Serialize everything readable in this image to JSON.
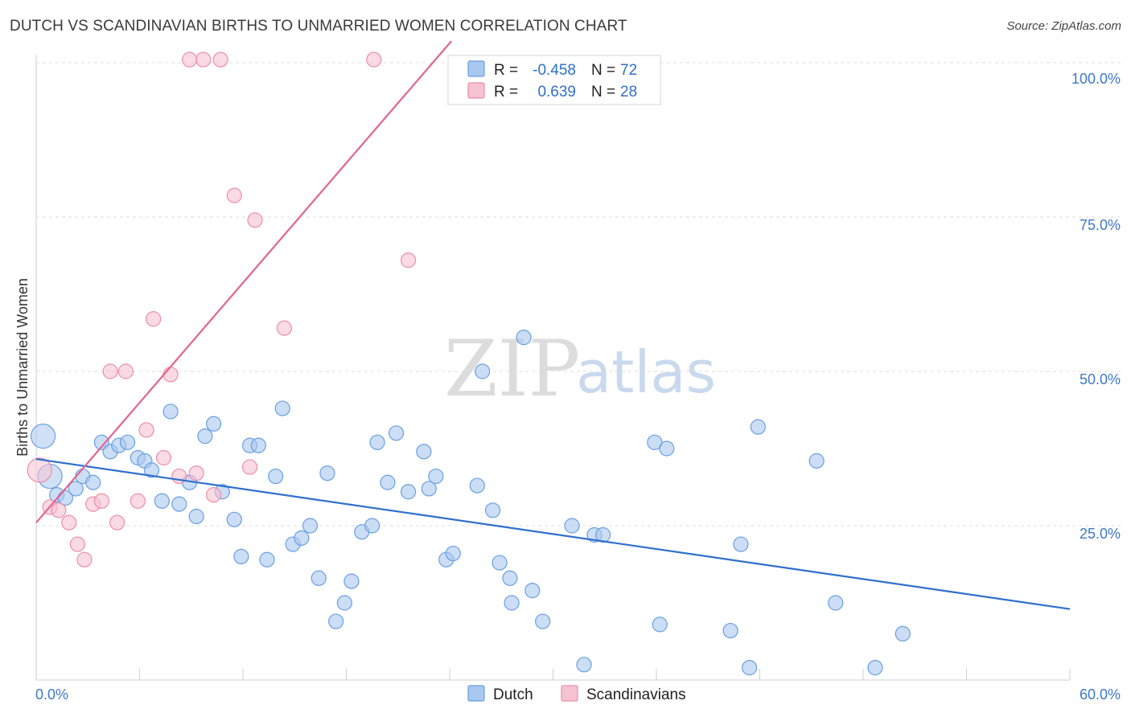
{
  "title": "DUTCH VS SCANDINAVIAN BIRTHS TO UNMARRIED WOMEN CORRELATION CHART",
  "source": "Source: ZipAtlas.com",
  "watermark": {
    "zip": "ZIP",
    "atlas": "atlas"
  },
  "colors": {
    "dutch_fill": "#a9c8f0",
    "dutch_stroke": "#6a9fe0",
    "dutch_line": "#2f6fce",
    "scand_fill": "#f7c2d2",
    "scand_stroke": "#ec8eab",
    "scand_line": "#e2648e",
    "axis_text": "#3f78c8",
    "grid": "#dddddd"
  },
  "legend": {
    "rows": [
      {
        "r_label": "R =",
        "r_value": "-0.458",
        "n_label": "N =",
        "n_value": "72"
      },
      {
        "r_label": "R =",
        "r_value": "0.639",
        "n_label": "N =",
        "n_value": "28"
      }
    ]
  },
  "bottom_legend": {
    "dutch": "Dutch",
    "scandinavians": "Scandinavians"
  },
  "chart_data": {
    "type": "scatter",
    "title": "DUTCH VS SCANDINAVIAN BIRTHS TO UNMARRIED WOMEN CORRELATION CHART",
    "xlabel": "",
    "ylabel": "Births to Unmarried Women",
    "xlim": [
      0,
      60
    ],
    "ylim": [
      0,
      105
    ],
    "x_tick_labels": [
      "0.0%",
      "60.0%"
    ],
    "y_ticks": [
      {
        "value": 25,
        "label": "25.0%"
      },
      {
        "value": 50,
        "label": "50.0%"
      },
      {
        "value": 75,
        "label": "75.0%"
      },
      {
        "value": 100,
        "label": "100.0%"
      }
    ],
    "grid": true,
    "series": [
      {
        "name": "Dutch",
        "r": -0.458,
        "n": 72,
        "trend": {
          "x": [
            0,
            60
          ],
          "y": [
            35.8,
            11.5
          ]
        },
        "points": [
          {
            "x": 0.4,
            "y": 39.5,
            "big": true
          },
          {
            "x": 0.8,
            "y": 33.0,
            "big": true
          },
          {
            "x": 1.2,
            "y": 30.0
          },
          {
            "x": 1.7,
            "y": 29.5
          },
          {
            "x": 2.3,
            "y": 31.0
          },
          {
            "x": 2.7,
            "y": 33.0
          },
          {
            "x": 3.3,
            "y": 32.0
          },
          {
            "x": 3.8,
            "y": 38.5
          },
          {
            "x": 4.3,
            "y": 37.0
          },
          {
            "x": 4.8,
            "y": 38.0
          },
          {
            "x": 5.3,
            "y": 38.5
          },
          {
            "x": 5.9,
            "y": 36.0
          },
          {
            "x": 6.3,
            "y": 35.5
          },
          {
            "x": 6.7,
            "y": 34.0
          },
          {
            "x": 7.3,
            "y": 29.0
          },
          {
            "x": 7.8,
            "y": 43.5
          },
          {
            "x": 8.3,
            "y": 28.5
          },
          {
            "x": 8.9,
            "y": 32.0
          },
          {
            "x": 9.3,
            "y": 26.5
          },
          {
            "x": 9.8,
            "y": 39.5
          },
          {
            "x": 10.3,
            "y": 41.5
          },
          {
            "x": 10.8,
            "y": 30.5
          },
          {
            "x": 11.5,
            "y": 26.0
          },
          {
            "x": 11.9,
            "y": 20.0
          },
          {
            "x": 12.4,
            "y": 38.0
          },
          {
            "x": 12.9,
            "y": 38.0
          },
          {
            "x": 13.4,
            "y": 19.5
          },
          {
            "x": 13.9,
            "y": 33.0
          },
          {
            "x": 14.3,
            "y": 44.0
          },
          {
            "x": 14.9,
            "y": 22.0
          },
          {
            "x": 15.4,
            "y": 23.0
          },
          {
            "x": 15.9,
            "y": 25.0
          },
          {
            "x": 16.4,
            "y": 16.5
          },
          {
            "x": 16.9,
            "y": 33.5
          },
          {
            "x": 17.4,
            "y": 9.5
          },
          {
            "x": 17.9,
            "y": 12.5
          },
          {
            "x": 18.3,
            "y": 16.0
          },
          {
            "x": 18.9,
            "y": 24.0
          },
          {
            "x": 19.5,
            "y": 25.0
          },
          {
            "x": 19.8,
            "y": 38.5
          },
          {
            "x": 20.4,
            "y": 32.0
          },
          {
            "x": 20.9,
            "y": 40.0
          },
          {
            "x": 21.6,
            "y": 30.5
          },
          {
            "x": 22.5,
            "y": 37.0
          },
          {
            "x": 22.8,
            "y": 31.0
          },
          {
            "x": 23.2,
            "y": 33.0
          },
          {
            "x": 23.8,
            "y": 19.5
          },
          {
            "x": 24.2,
            "y": 20.5
          },
          {
            "x": 25.6,
            "y": 31.5
          },
          {
            "x": 25.9,
            "y": 50.0
          },
          {
            "x": 26.5,
            "y": 27.5
          },
          {
            "x": 26.9,
            "y": 19.0
          },
          {
            "x": 27.5,
            "y": 16.5
          },
          {
            "x": 27.6,
            "y": 12.5
          },
          {
            "x": 28.3,
            "y": 55.5
          },
          {
            "x": 28.8,
            "y": 14.5
          },
          {
            "x": 29.4,
            "y": 9.5
          },
          {
            "x": 31.1,
            "y": 25.0
          },
          {
            "x": 31.8,
            "y": 2.5
          },
          {
            "x": 32.4,
            "y": 23.5
          },
          {
            "x": 32.9,
            "y": 23.5
          },
          {
            "x": 35.9,
            "y": 38.5
          },
          {
            "x": 36.2,
            "y": 9.0
          },
          {
            "x": 36.6,
            "y": 37.5
          },
          {
            "x": 40.3,
            "y": 8.0
          },
          {
            "x": 40.9,
            "y": 22.0
          },
          {
            "x": 41.4,
            "y": 2.0
          },
          {
            "x": 41.9,
            "y": 41.0
          },
          {
            "x": 45.3,
            "y": 35.5
          },
          {
            "x": 46.4,
            "y": 12.5
          },
          {
            "x": 48.7,
            "y": 2.0
          },
          {
            "x": 50.3,
            "y": 7.5
          }
        ]
      },
      {
        "name": "Scandinavians",
        "r": 0.639,
        "n": 28,
        "trend": {
          "x": [
            0,
            24.1
          ],
          "y": [
            25.5,
            103.5
          ]
        },
        "points": [
          {
            "x": 0.2,
            "y": 34.0,
            "big": true
          },
          {
            "x": 0.8,
            "y": 28.0
          },
          {
            "x": 1.3,
            "y": 27.5
          },
          {
            "x": 1.9,
            "y": 25.5
          },
          {
            "x": 2.4,
            "y": 22.0
          },
          {
            "x": 2.8,
            "y": 19.5
          },
          {
            "x": 3.3,
            "y": 28.5
          },
          {
            "x": 3.8,
            "y": 29.0
          },
          {
            "x": 4.3,
            "y": 50.0
          },
          {
            "x": 4.7,
            "y": 25.5
          },
          {
            "x": 5.2,
            "y": 50.0
          },
          {
            "x": 5.9,
            "y": 29.0
          },
          {
            "x": 6.4,
            "y": 40.5
          },
          {
            "x": 6.8,
            "y": 58.5
          },
          {
            "x": 7.4,
            "y": 36.0
          },
          {
            "x": 7.8,
            "y": 49.5
          },
          {
            "x": 8.3,
            "y": 33.0
          },
          {
            "x": 8.9,
            "y": 100.5
          },
          {
            "x": 9.3,
            "y": 33.5
          },
          {
            "x": 9.7,
            "y": 100.5
          },
          {
            "x": 10.3,
            "y": 30.0
          },
          {
            "x": 10.7,
            "y": 100.5
          },
          {
            "x": 11.5,
            "y": 78.5
          },
          {
            "x": 12.4,
            "y": 34.5
          },
          {
            "x": 12.7,
            "y": 74.5
          },
          {
            "x": 14.4,
            "y": 57.0
          },
          {
            "x": 19.6,
            "y": 100.5
          },
          {
            "x": 21.6,
            "y": 68.0
          }
        ]
      }
    ]
  }
}
